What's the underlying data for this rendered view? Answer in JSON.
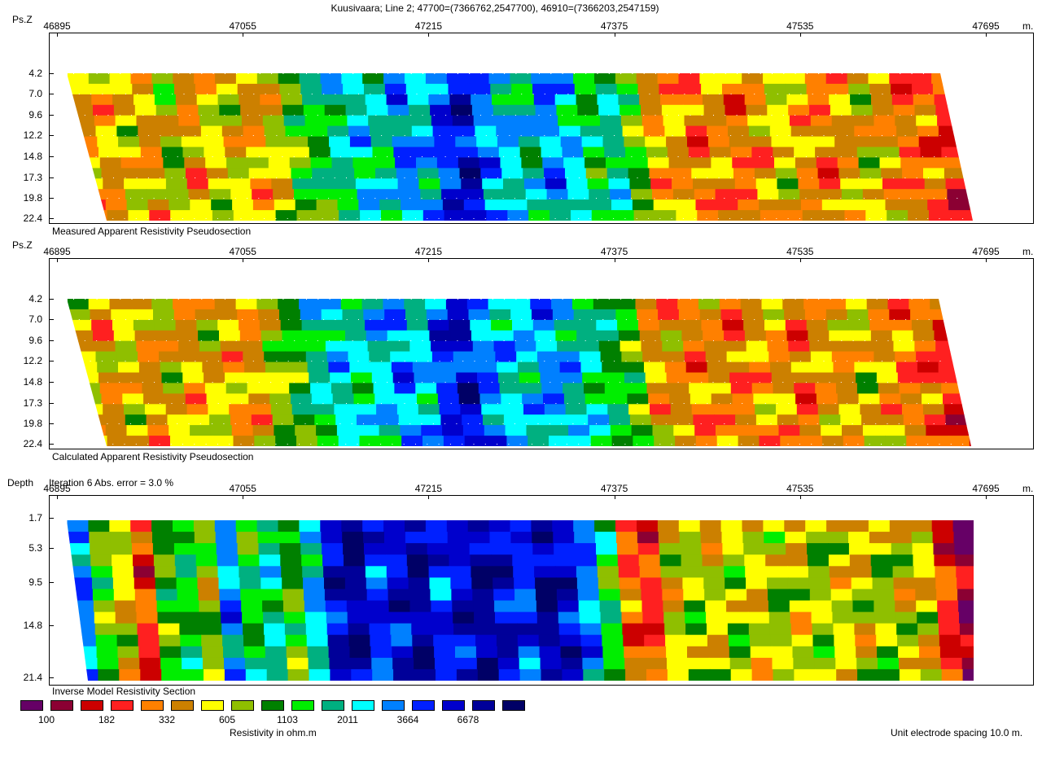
{
  "header": {
    "title": "Kuusivaara; Line 2; 47700=(7366762,2547700), 46910=(7366203,2547159)"
  },
  "axis": {
    "x_ticks": [
      "46895",
      "47055",
      "47215",
      "47375",
      "47535",
      "47695"
    ],
    "unit": "m."
  },
  "panels": [
    {
      "id": "measured",
      "y_title": "Ps.Z",
      "caption": "Measured Apparent Resistivity Pseudosection",
      "subtitle": "",
      "depth_labels": [
        "4.2",
        "7.0",
        "9.6",
        "12.2",
        "14.8",
        "17.3",
        "19.8",
        "22.4"
      ]
    },
    {
      "id": "calculated",
      "y_title": "Ps.Z",
      "caption": "Calculated Apparent Resistivity Pseudosection",
      "subtitle": "",
      "depth_labels": [
        "4.2",
        "7.0",
        "9.6",
        "12.2",
        "14.8",
        "17.3",
        "19.8",
        "22.4"
      ]
    },
    {
      "id": "inverse",
      "y_title": "Depth",
      "caption": "Inverse Model Resistivity Section",
      "subtitle": "Iteration 6 Abs. error = 3.0 %",
      "depth_labels": [
        "1.7",
        "5.3",
        "9.5",
        "14.8",
        "21.4"
      ]
    }
  ],
  "legend": {
    "colors": [
      "#660066",
      "#8B0033",
      "#CC0000",
      "#FF2020",
      "#FF8000",
      "#CC8000",
      "#FFFF00",
      "#8FBF00",
      "#008000",
      "#00EE00",
      "#00B080",
      "#00FFFF",
      "#0080FF",
      "#0020FF",
      "#0000CC",
      "#000099",
      "#000066"
    ],
    "labels": [
      "100",
      "182",
      "332",
      "605",
      "1103",
      "2011",
      "3664",
      "6678"
    ],
    "title": "Resistivity in ohm.m"
  },
  "footer": {
    "spacing": "Unit electrode spacing 10.0 m."
  },
  "chart_data": [
    {
      "type": "heatmap",
      "title": "Measured Apparent Resistivity Pseudosection",
      "xlabel": "",
      "ylabel": "Ps.Z",
      "xlim": [
        46895,
        47695
      ],
      "x_ticks": [
        46895,
        47055,
        47215,
        47375,
        47535,
        47695
      ],
      "y_ticks": [
        4.2,
        7.0,
        9.6,
        12.2,
        14.8,
        17.3,
        19.8,
        22.4
      ],
      "x_unit": "m.",
      "color_scale": [
        100,
        182,
        332,
        605,
        1103,
        2011,
        3664,
        6678
      ],
      "column_classes": [
        5,
        5,
        6,
        5,
        7,
        5,
        6,
        6,
        5,
        6,
        8,
        9,
        10,
        11,
        10,
        12,
        11,
        13,
        14,
        12,
        11,
        10,
        12,
        11,
        9,
        10,
        8,
        5,
        5,
        4,
        5,
        4,
        5,
        6,
        5,
        4,
        5,
        6,
        5,
        4,
        4,
        3,
        2
      ]
    },
    {
      "type": "heatmap",
      "title": "Calculated Apparent Resistivity Pseudosection",
      "xlabel": "",
      "ylabel": "Ps.Z",
      "xlim": [
        46895,
        47695
      ],
      "x_ticks": [
        46895,
        47055,
        47215,
        47375,
        47535,
        47695
      ],
      "y_ticks": [
        4.2,
        7.0,
        9.6,
        12.2,
        14.8,
        17.3,
        19.8,
        22.4
      ],
      "x_unit": "m.",
      "color_scale": [
        100,
        182,
        332,
        605,
        1103,
        2011,
        3664,
        6678
      ],
      "column_classes": [
        6,
        5,
        6,
        5,
        6,
        5,
        6,
        5,
        5,
        7,
        8,
        10,
        11,
        10,
        11,
        12,
        11,
        13,
        14,
        12,
        11,
        11,
        12,
        11,
        10,
        9,
        8,
        5,
        5,
        4,
        5,
        4,
        5,
        5,
        4,
        5,
        5,
        6,
        5,
        4,
        4,
        3,
        2
      ]
    },
    {
      "type": "heatmap",
      "title": "Inverse Model Resistivity Section",
      "subtitle": "Iteration 6 Abs. error = 3.0 %",
      "xlabel": "",
      "ylabel": "Depth",
      "xlim": [
        46895,
        47695
      ],
      "x_ticks": [
        46895,
        47055,
        47215,
        47375,
        47535,
        47695
      ],
      "y_ticks": [
        1.7,
        5.3,
        9.5,
        14.8,
        21.4
      ],
      "x_unit": "m.",
      "color_scale": [
        100,
        182,
        332,
        605,
        1103,
        2011,
        3664,
        6678
      ],
      "column_classes": [
        12,
        8,
        6,
        3,
        8,
        9,
        7,
        12,
        9,
        10,
        8,
        11,
        14,
        15,
        13,
        14,
        15,
        13,
        14,
        15,
        14,
        13,
        15,
        14,
        12,
        9,
        4,
        3,
        6,
        7,
        6,
        7,
        6,
        7,
        6,
        7,
        6,
        6,
        7,
        6,
        6,
        3,
        1
      ]
    }
  ]
}
